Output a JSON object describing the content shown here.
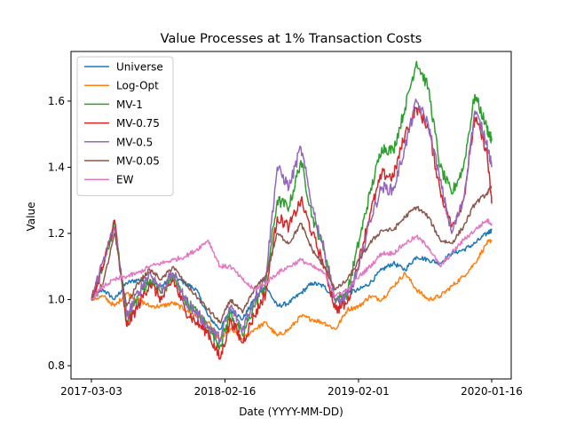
{
  "chart_data": {
    "type": "line",
    "title": "Value Processes at 1% Transaction Costs",
    "xlabel": "Date (YYYY-MM-DD)",
    "ylabel": "Value",
    "x_ticks": [
      "2017-03-03",
      "2018-02-16",
      "2019-02-01",
      "2020-01-16"
    ],
    "x_range": [
      "2017-03-03",
      "2020-01-16"
    ],
    "ylim": [
      0.76,
      1.75
    ],
    "y_ticks": [
      0.8,
      1.0,
      1.2,
      1.4,
      1.6
    ],
    "y_tick_labels": [
      "0.8",
      "1.0",
      "1.2",
      "1.4",
      "1.6"
    ],
    "grid": false,
    "legend_position": "top-left",
    "x": [
      "2017-03-03",
      "2017-04-03",
      "2017-05-03",
      "2017-06-03",
      "2017-07-03",
      "2017-08-03",
      "2017-09-03",
      "2017-10-03",
      "2017-11-03",
      "2017-12-03",
      "2018-01-03",
      "2018-02-03",
      "2018-03-03",
      "2018-04-03",
      "2018-05-03",
      "2018-06-03",
      "2018-07-03",
      "2018-08-03",
      "2018-09-03",
      "2018-10-03",
      "2018-11-03",
      "2018-12-03",
      "2019-01-03",
      "2019-02-03",
      "2019-03-03",
      "2019-04-03",
      "2019-05-03",
      "2019-06-03",
      "2019-07-03",
      "2019-08-03",
      "2019-09-03",
      "2019-10-03",
      "2019-11-03",
      "2019-12-03",
      "2020-01-03",
      "2020-01-16"
    ],
    "series": [
      {
        "name": "Universe",
        "color": "#1f77b4",
        "values": [
          1.0,
          1.03,
          1.0,
          1.05,
          1.06,
          1.05,
          1.04,
          1.07,
          1.05,
          1.03,
          0.95,
          0.91,
          0.97,
          0.94,
          1.0,
          1.04,
          0.98,
          0.99,
          1.02,
          1.05,
          1.04,
          1.0,
          1.02,
          1.03,
          1.05,
          1.09,
          1.11,
          1.09,
          1.13,
          1.12,
          1.11,
          1.14,
          1.15,
          1.17,
          1.2,
          1.21
        ]
      },
      {
        "name": "Log-Opt",
        "color": "#ff7f0e",
        "values": [
          1.0,
          1.01,
          0.98,
          1.02,
          1.0,
          0.98,
          0.98,
          0.99,
          0.97,
          0.95,
          0.93,
          0.88,
          0.91,
          0.88,
          0.91,
          0.93,
          0.89,
          0.91,
          0.95,
          0.94,
          0.93,
          0.91,
          0.97,
          0.98,
          1.01,
          1.0,
          1.04,
          1.08,
          1.03,
          1.0,
          1.01,
          1.04,
          1.07,
          1.11,
          1.17,
          1.18
        ]
      },
      {
        "name": "MV-1",
        "color": "#2ca02c",
        "values": [
          1.0,
          1.1,
          1.23,
          0.93,
          1.01,
          1.06,
          1.02,
          1.07,
          1.0,
          0.96,
          0.92,
          0.86,
          0.96,
          0.89,
          0.98,
          1.05,
          1.3,
          1.28,
          1.42,
          1.25,
          1.15,
          1.0,
          1.02,
          1.18,
          1.32,
          1.46,
          1.45,
          1.58,
          1.72,
          1.64,
          1.4,
          1.32,
          1.4,
          1.62,
          1.52,
          1.48
        ]
      },
      {
        "name": "MV-0.75",
        "color": "#d62728",
        "values": [
          1.0,
          1.1,
          1.24,
          0.92,
          0.98,
          1.05,
          1.0,
          1.06,
          0.97,
          0.93,
          0.9,
          0.82,
          0.94,
          0.87,
          0.95,
          1.02,
          1.25,
          1.22,
          1.3,
          1.2,
          1.1,
          0.97,
          0.99,
          1.12,
          1.26,
          1.38,
          1.37,
          1.5,
          1.58,
          1.52,
          1.33,
          1.22,
          1.3,
          1.55,
          1.45,
          1.29
        ]
      },
      {
        "name": "MV-0.5",
        "color": "#9467bd",
        "values": [
          1.0,
          1.12,
          1.22,
          0.95,
          1.02,
          1.08,
          1.03,
          1.08,
          1.0,
          0.96,
          0.92,
          0.88,
          0.98,
          0.91,
          1.0,
          1.07,
          1.4,
          1.34,
          1.46,
          1.28,
          1.15,
          0.99,
          1.01,
          1.1,
          1.24,
          1.34,
          1.33,
          1.46,
          1.6,
          1.53,
          1.36,
          1.2,
          1.3,
          1.57,
          1.48,
          1.4
        ]
      },
      {
        "name": "MV-0.05",
        "color": "#8c564b",
        "values": [
          1.0,
          1.05,
          1.2,
          0.98,
          1.05,
          1.09,
          1.06,
          1.1,
          1.05,
          1.01,
          0.97,
          0.93,
          1.0,
          0.96,
          1.03,
          1.07,
          1.2,
          1.17,
          1.23,
          1.15,
          1.1,
          1.03,
          1.06,
          1.12,
          1.17,
          1.21,
          1.21,
          1.25,
          1.28,
          1.25,
          1.18,
          1.17,
          1.22,
          1.29,
          1.32,
          1.34
        ]
      },
      {
        "name": "EW",
        "color": "#e377c2",
        "values": [
          1.0,
          1.04,
          1.06,
          1.07,
          1.08,
          1.1,
          1.11,
          1.12,
          1.13,
          1.15,
          1.18,
          1.1,
          1.1,
          1.06,
          1.03,
          1.05,
          1.08,
          1.1,
          1.12,
          1.1,
          1.08,
          1.01,
          1.03,
          1.07,
          1.1,
          1.14,
          1.14,
          1.17,
          1.19,
          1.16,
          1.1,
          1.14,
          1.18,
          1.21,
          1.24,
          1.23
        ]
      }
    ]
  }
}
